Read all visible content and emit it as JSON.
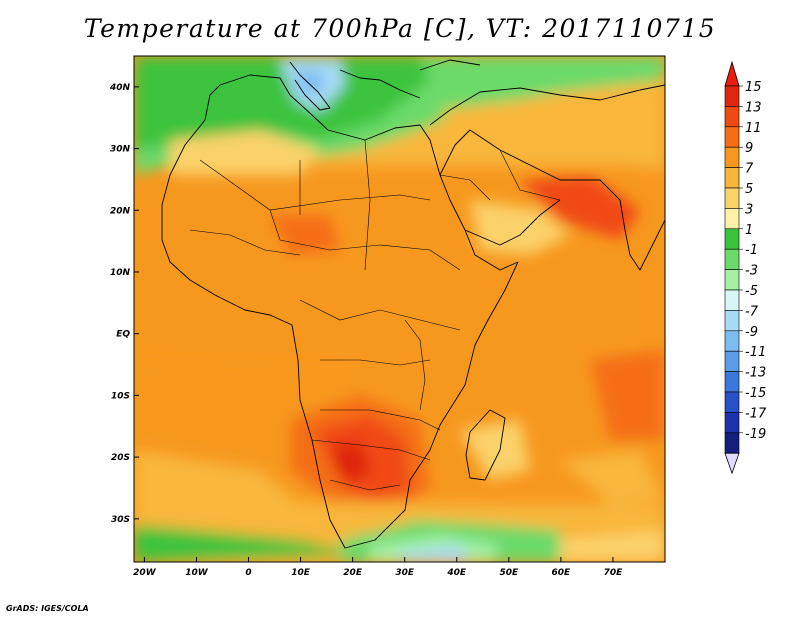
{
  "title": "Temperature at 700hPa [C], VT: 2017110715",
  "credit": "GrADS: IGES/COLA",
  "map": {
    "lon_range": [
      -22,
      80
    ],
    "lat_range": [
      -37,
      45
    ],
    "lon_ticks": [
      {
        "value": -20,
        "label": "20W"
      },
      {
        "value": -10,
        "label": "10W"
      },
      {
        "value": 0,
        "label": "0"
      },
      {
        "value": 10,
        "label": "10E"
      },
      {
        "value": 20,
        "label": "20E"
      },
      {
        "value": 30,
        "label": "30E"
      },
      {
        "value": 40,
        "label": "40E"
      },
      {
        "value": 50,
        "label": "50E"
      },
      {
        "value": 60,
        "label": "60E"
      },
      {
        "value": 70,
        "label": "70E"
      }
    ],
    "lat_ticks": [
      {
        "value": 40,
        "label": "40N"
      },
      {
        "value": 30,
        "label": "30N"
      },
      {
        "value": 20,
        "label": "20N"
      },
      {
        "value": 10,
        "label": "10N"
      },
      {
        "value": 0,
        "label": "EQ"
      },
      {
        "value": -10,
        "label": "10S"
      },
      {
        "value": -20,
        "label": "20S"
      },
      {
        "value": -30,
        "label": "30S"
      }
    ]
  },
  "colorbar": {
    "max_arrow_color": "#e81e0e",
    "min_arrow_color": "#e0dcff",
    "levels": [
      {
        "label": "15",
        "color": "#e02810"
      },
      {
        "label": "13",
        "color": "#f04a12"
      },
      {
        "label": "11",
        "color": "#f56e16"
      },
      {
        "label": "9",
        "color": "#f7981e"
      },
      {
        "label": "7",
        "color": "#f8b63a"
      },
      {
        "label": "5",
        "color": "#fbd26a"
      },
      {
        "label": "3",
        "color": "#fdf2a8"
      },
      {
        "label": "1",
        "color": "#3cc33c"
      },
      {
        "label": "-1",
        "color": "#6ada6a"
      },
      {
        "label": "-3",
        "color": "#a4f0a4"
      },
      {
        "label": "-5",
        "color": "#d8f6f4"
      },
      {
        "label": "-7",
        "color": "#a8dcf6"
      },
      {
        "label": "-9",
        "color": "#7cbcf0"
      },
      {
        "label": "-11",
        "color": "#5a9ce8"
      },
      {
        "label": "-13",
        "color": "#3c78dc"
      },
      {
        "label": "-15",
        "color": "#2850c8"
      },
      {
        "label": "-17",
        "color": "#1e32b0"
      },
      {
        "label": "-19",
        "color": "#141e7c"
      }
    ]
  }
}
